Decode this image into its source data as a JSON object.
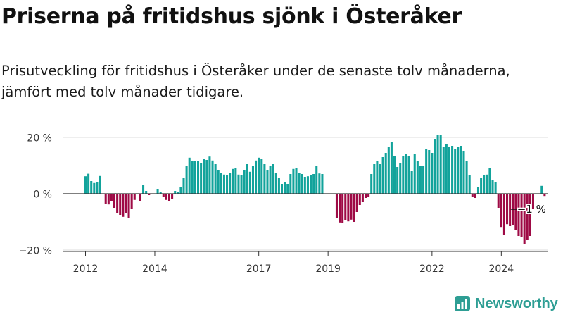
{
  "header": {
    "title": "Priserna på fritidshus sjönk i Österåker",
    "subtitle": "Prisutveckling för fritidshus i Österåker under de senaste tolv månaderna, jämfört med tolv månader tidigare."
  },
  "brand": {
    "name": "Newsworthy",
    "icon": "newsworthy-logo-icon"
  },
  "colors": {
    "positive": "#12a39b",
    "negative": "#9e0a45",
    "grid": "#dddddd",
    "axis": "#333333",
    "brand": "#2e9e94"
  },
  "chart_data": {
    "type": "bar",
    "title": "Priserna på fritidshus sjönk i Österåker",
    "xlabel": "",
    "ylabel": "",
    "ylim": [
      -21,
      22
    ],
    "yticks": [
      {
        "value": 20,
        "label": "20 %"
      },
      {
        "value": 0,
        "label": "0 %"
      },
      {
        "value": -20,
        "label": "−20 %"
      }
    ],
    "xticks": [
      {
        "index": 0,
        "label": "2012"
      },
      {
        "index": 24,
        "label": "2014"
      },
      {
        "index": 60,
        "label": "2017"
      },
      {
        "index": 84,
        "label": "2019"
      },
      {
        "index": 120,
        "label": "2022"
      },
      {
        "index": 144,
        "label": "2024"
      }
    ],
    "annotation": {
      "index": 148,
      "value": -5.5,
      "label": "−1 %"
    },
    "grid": true,
    "legend": "none",
    "start": "2012-01",
    "values": [
      6.2,
      7.1,
      4.5,
      3.8,
      4.0,
      6.3,
      0,
      -3.5,
      -3.8,
      -2.5,
      -5.0,
      -6.8,
      -7.5,
      -8.2,
      -7.0,
      -8.5,
      -5.5,
      -2.2,
      0,
      -2.5,
      3.0,
      1.0,
      -0.5,
      0,
      0,
      1.5,
      0.5,
      -1.0,
      -2.2,
      -2.5,
      -2.0,
      1.0,
      0.5,
      2.5,
      5.5,
      10.0,
      12.8,
      11.5,
      11.5,
      11.5,
      11.0,
      12.5,
      12.0,
      13.2,
      11.8,
      10.5,
      8.5,
      7.5,
      6.8,
      6.5,
      7.5,
      8.8,
      9.2,
      6.8,
      6.5,
      8.5,
      10.5,
      7.8,
      10.0,
      11.8,
      12.8,
      12.5,
      10.5,
      8.5,
      10.0,
      10.5,
      7.5,
      5.5,
      3.5,
      4.0,
      3.5,
      7.0,
      8.8,
      9.0,
      7.5,
      7.0,
      6.0,
      6.2,
      6.5,
      7.0,
      10.0,
      7.2,
      7.0,
      0,
      0,
      0,
      0,
      -8.5,
      -10.2,
      -10.5,
      -9.5,
      -9.8,
      -9.2,
      -10.0,
      -6.5,
      -4.0,
      -3.0,
      -1.5,
      -1.0,
      7.0,
      10.5,
      11.5,
      10.5,
      13.0,
      14.5,
      16.5,
      18.5,
      13.5,
      9.5,
      11.0,
      13.5,
      14.0,
      13.5,
      8.0,
      14.0,
      11.5,
      10.0,
      10.0,
      16.0,
      15.5,
      14.5,
      19.5,
      21.0,
      21.0,
      16.5,
      17.5,
      16.5,
      17.0,
      16.0,
      16.5,
      17.0,
      15.0,
      11.5,
      6.5,
      -1.0,
      -1.5,
      2.5,
      5.5,
      6.5,
      6.8,
      9.0,
      5.0,
      4.2,
      -5.0,
      -11.8,
      -14.5,
      -10.8,
      -11.5,
      -11.2,
      -13.0,
      -15.0,
      -15.5,
      -17.8,
      -16.5,
      -15.0,
      -5.5,
      0,
      0,
      2.8,
      -0.8
    ]
  }
}
